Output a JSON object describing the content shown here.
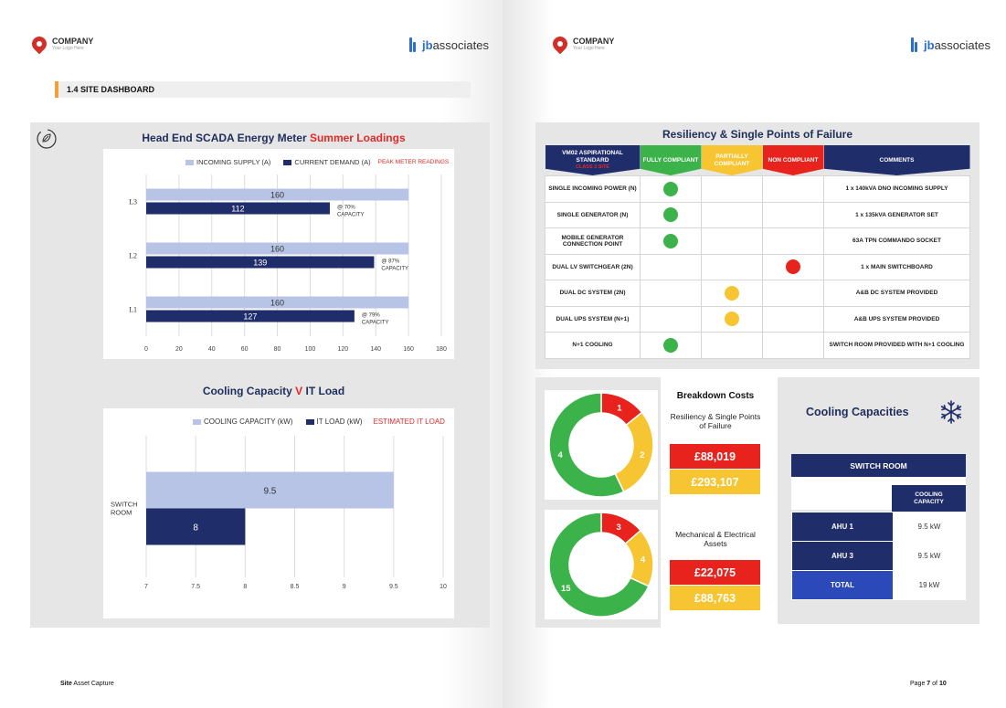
{
  "header": {
    "company_name": "COMPANY",
    "company_tagline": "Your Logo Here",
    "jb_prefix": "jb",
    "jb_suffix": "associates"
  },
  "section_title": "1.4 SITE DASHBOARD",
  "energy": {
    "title_main": "Head End SCADA Energy Meter ",
    "title_highlight": "Summer Loadings",
    "legend_incoming": "INCOMING SUPPLY (A)",
    "legend_demand": "CURRENT DEMAND (A)",
    "legend_peak": "PEAK METER READINGS"
  },
  "cooling_load": {
    "title_a": "Cooling Capacity ",
    "title_v": "V",
    "title_b": " IT Load",
    "legend_cooling": "COOLING CAPACITY (kW)",
    "legend_it": "IT LOAD (kW)",
    "legend_est": "ESTIMATED IT LOAD"
  },
  "chart_data": [
    {
      "type": "bar",
      "orientation": "horizontal",
      "title": "Head End SCADA Energy Meter Summer Loadings",
      "categories": [
        "L3",
        "L2",
        "L1"
      ],
      "series": [
        {
          "name": "INCOMING SUPPLY (A)",
          "values": [
            160,
            160,
            160
          ]
        },
        {
          "name": "CURRENT DEMAND (A)",
          "values": [
            112,
            139,
            127
          ]
        }
      ],
      "annotations": [
        "@ 70% CAPACITY",
        "@ 87% CAPACITY",
        "@ 79% CAPACITY"
      ],
      "xlim": [
        0,
        180
      ],
      "xticks": [
        "0",
        "20",
        "40",
        "60",
        "80",
        "100",
        "120",
        "140",
        "160",
        "180"
      ],
      "grid": true,
      "legend": "top"
    },
    {
      "type": "bar",
      "orientation": "horizontal",
      "title": "Cooling Capacity V IT Load",
      "categories": [
        "SWITCH ROOM"
      ],
      "series": [
        {
          "name": "COOLING CAPACITY (kW)",
          "values": [
            9.5
          ]
        },
        {
          "name": "IT LOAD (kW)",
          "values": [
            8
          ]
        }
      ],
      "xlim": [
        7,
        10
      ],
      "xticks": [
        "7",
        "7.5",
        "8",
        "8.5",
        "9",
        "9.5",
        "10"
      ],
      "grid": true,
      "legend": "top"
    },
    {
      "type": "pie",
      "donut": true,
      "title": "Resiliency & Single Points of Failure",
      "categories": [
        "NON COMPLIANT",
        "PARTIALLY COMPLIANT",
        "FULLY COMPLIANT"
      ],
      "values": [
        1,
        2,
        4
      ]
    },
    {
      "type": "pie",
      "donut": true,
      "title": "Mechanical & Electrical Assets",
      "categories": [
        "NON COMPLIANT",
        "PARTIALLY COMPLIANT",
        "FULLY COMPLIANT"
      ],
      "values": [
        3,
        4,
        15
      ]
    }
  ],
  "resiliency": {
    "title": "Resiliency & Single Points of Failure",
    "headers": {
      "standard": "VM02 ASPIRATIONAL STANDARD",
      "standard_sub": "CLASS 3 SITE",
      "fully": "FULLY COMPLIANT",
      "partial": "PARTIALLY COMPLIANT",
      "non": "NON COMPLIANT",
      "comments": "COMMENTS"
    },
    "rows": [
      {
        "label": "SINGLE INCOMING POWER (N)",
        "status": "fully",
        "comment": "1 x 140kVA DNO INCOMING SUPPLY"
      },
      {
        "label": "SINGLE GENERATOR (N)",
        "status": "fully",
        "comment": "1 x 135kVA GENERATOR SET"
      },
      {
        "label": "MOBILE GENERATOR CONNECTION POINT",
        "status": "fully",
        "comment": "63A TPN COMMANDO SOCKET"
      },
      {
        "label": "DUAL LV SWITCHGEAR (2N)",
        "status": "non",
        "comment": "1 x MAIN SWITCHBOARD"
      },
      {
        "label": "DUAL DC SYSTEM (2N)",
        "status": "partial",
        "comment": "A&B DC SYSTEM PROVIDED"
      },
      {
        "label": "DUAL UPS SYSTEM (N+1)",
        "status": "partial",
        "comment": "A&B UPS SYSTEM PROVIDED"
      },
      {
        "label": "N+1 COOLING",
        "status": "fully",
        "comment": "SWITCH ROOM PROVIDED WITH N+1 COOLING"
      }
    ]
  },
  "breakdown": {
    "title": "Breakdown Costs",
    "group1_label": "Resiliency & Single Points of Failure",
    "group1_red": "£88,019",
    "group1_yellow": "£293,107",
    "group2_label": "Mechanical & Electrical Assets",
    "group2_red": "£22,075",
    "group2_yellow": "£88,763"
  },
  "cooling_capacities": {
    "title": "Cooling Capacities",
    "room": "SWITCH ROOM",
    "col_header": "COOLING CAPACITY",
    "rows": [
      {
        "label": "AHU 1",
        "value": "9.5 kW"
      },
      {
        "label": "AHU 3",
        "value": "9.5 kW"
      },
      {
        "label": "TOTAL",
        "value": "19 kW"
      }
    ]
  },
  "footer": {
    "left_bold": "Site",
    "left_rest": " Asset Capture",
    "page_word": "Page ",
    "page_num": "7",
    "page_of": " of ",
    "page_total": "10"
  },
  "colors": {
    "navy": "#1f2d6b",
    "light_blue": "#b8c4e6",
    "green": "#3cb34a",
    "yellow": "#f6c531",
    "red": "#e8221c",
    "royal": "#2b49b8"
  }
}
